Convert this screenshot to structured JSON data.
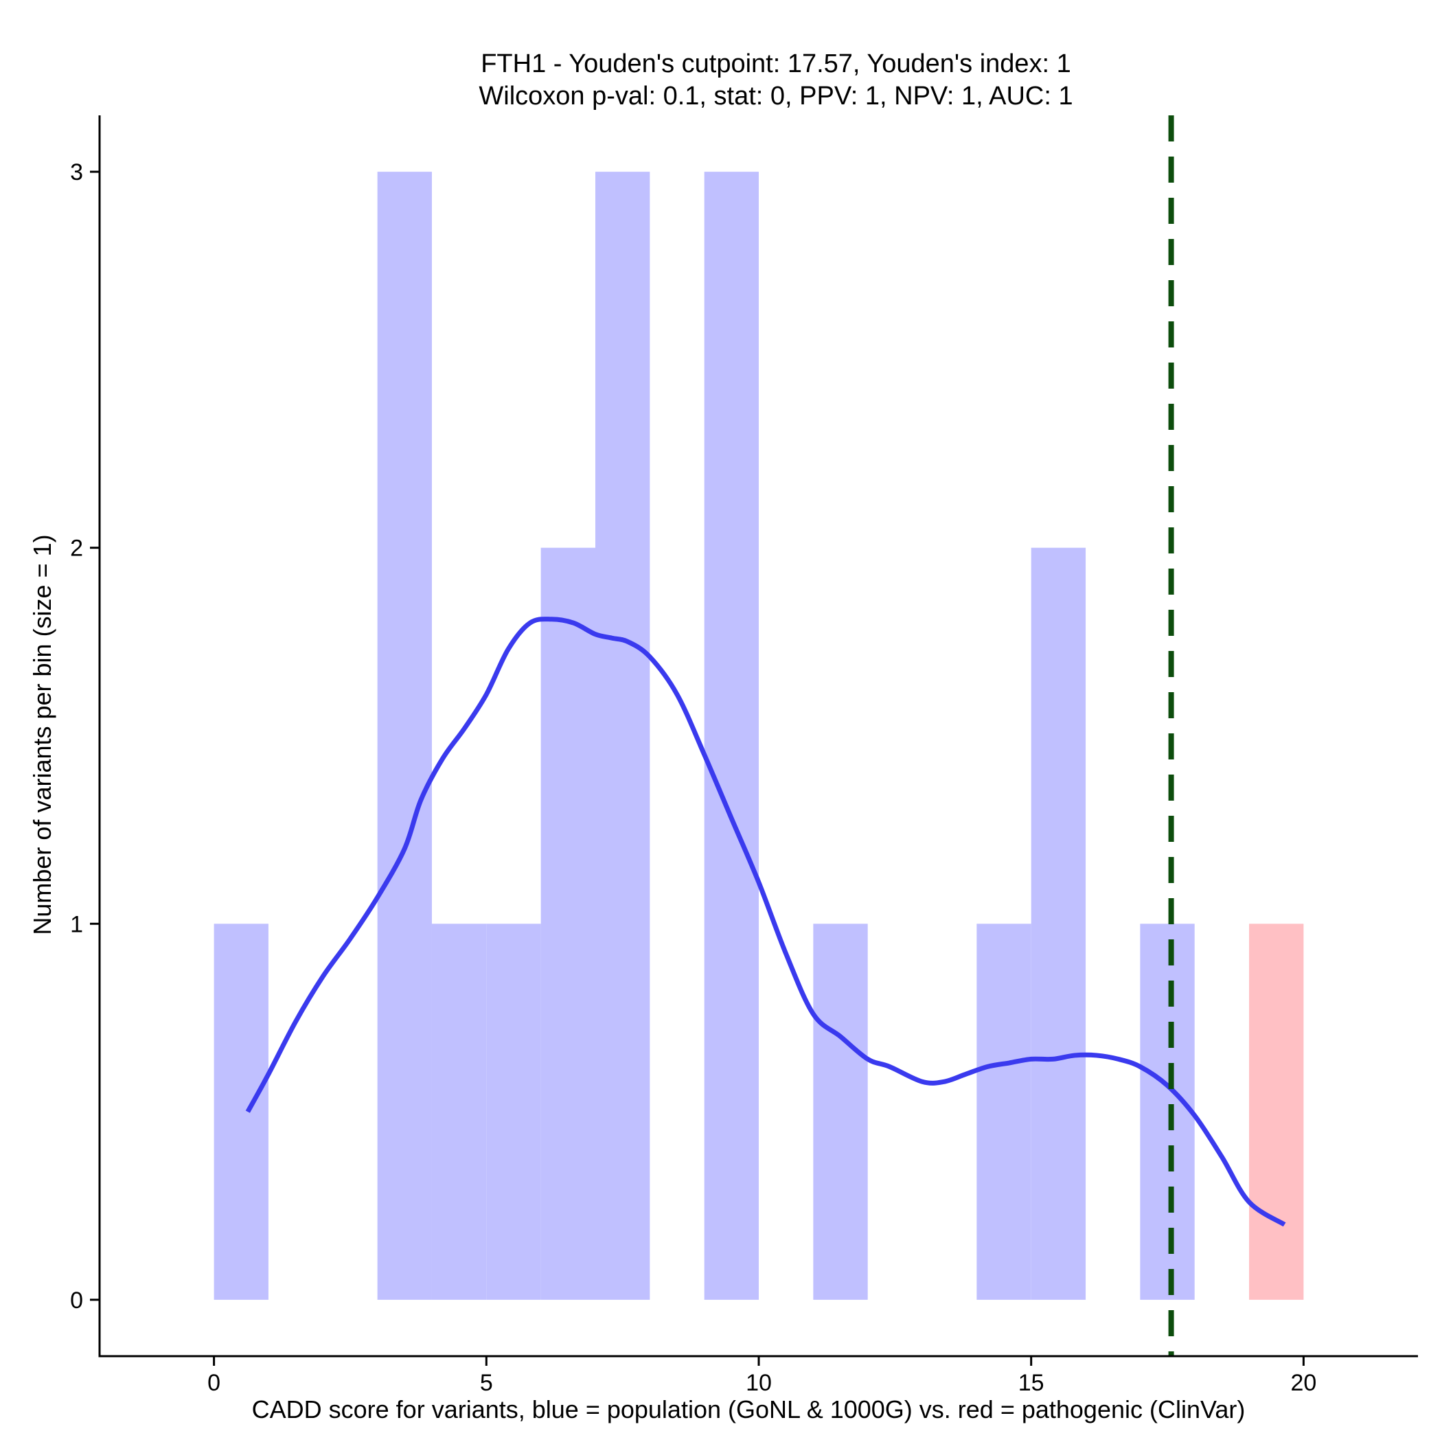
{
  "chart_data": {
    "type": "bar",
    "title_line1": "FTH1 - Youden's cutpoint: 17.57, Youden's index: 1",
    "title_line2": "Wilcoxon p-val: 0.1, stat: 0, PPV: 1, NPV: 1, AUC: 1",
    "xlabel": "CADD score for variants, blue = population (GoNL & 1000G) vs. red = pathogenic (ClinVar)",
    "ylabel": "Number of variants per bin (size = 1)",
    "xlim": [
      -2.1,
      22.1
    ],
    "ylim": [
      -0.15,
      3.15
    ],
    "x_ticks": [
      0,
      5,
      10,
      15,
      20
    ],
    "y_ticks": [
      0,
      1,
      2,
      3
    ],
    "grid": false,
    "cutpoint": 17.57,
    "colors": {
      "population": "#c0c0ff",
      "pathogenic": "#ffc0c4",
      "density": "#3a3aee",
      "cutpoint": "#0d4d0d"
    },
    "series": [
      {
        "name": "population",
        "bins": [
          {
            "start": 0,
            "end": 1,
            "count": 1
          },
          {
            "start": 3,
            "end": 4,
            "count": 3
          },
          {
            "start": 4,
            "end": 5,
            "count": 1
          },
          {
            "start": 5,
            "end": 6,
            "count": 1
          },
          {
            "start": 6,
            "end": 7,
            "count": 2
          },
          {
            "start": 7,
            "end": 8,
            "count": 3
          },
          {
            "start": 9,
            "end": 10,
            "count": 3
          },
          {
            "start": 11,
            "end": 12,
            "count": 1
          },
          {
            "start": 14,
            "end": 15,
            "count": 1
          },
          {
            "start": 15,
            "end": 16,
            "count": 2
          },
          {
            "start": 17,
            "end": 18,
            "count": 1
          }
        ]
      },
      {
        "name": "pathogenic",
        "bins": [
          {
            "start": 19,
            "end": 20,
            "count": 1
          }
        ]
      }
    ],
    "density_curve": {
      "x": [
        0.62,
        1.0,
        1.5,
        2.0,
        2.5,
        3.0,
        3.5,
        3.8,
        4.2,
        4.6,
        5.0,
        5.4,
        5.8,
        6.2,
        6.6,
        7.0,
        7.3,
        7.6,
        8.0,
        8.5,
        9.0,
        9.5,
        10.0,
        10.5,
        11.0,
        11.5,
        12.0,
        12.4,
        13.0,
        13.4,
        13.8,
        14.2,
        14.6,
        15.0,
        15.4,
        15.8,
        16.2,
        16.6,
        17.0,
        17.5,
        18.0,
        18.5,
        19.0,
        19.65
      ],
      "y": [
        0.5,
        0.6,
        0.74,
        0.86,
        0.96,
        1.07,
        1.2,
        1.33,
        1.44,
        1.52,
        1.61,
        1.73,
        1.8,
        1.81,
        1.8,
        1.77,
        1.76,
        1.75,
        1.71,
        1.61,
        1.45,
        1.28,
        1.11,
        0.92,
        0.76,
        0.7,
        0.64,
        0.62,
        0.58,
        0.58,
        0.6,
        0.62,
        0.63,
        0.64,
        0.64,
        0.65,
        0.65,
        0.64,
        0.62,
        0.57,
        0.49,
        0.38,
        0.26,
        0.2
      ]
    }
  }
}
